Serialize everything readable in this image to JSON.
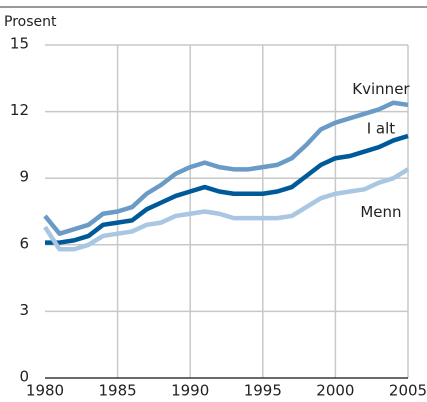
{
  "chart_data": {
    "type": "line",
    "y_label": "Prosent",
    "x": [
      1980,
      1981,
      1982,
      1983,
      1984,
      1985,
      1986,
      1987,
      1988,
      1989,
      1990,
      1991,
      1992,
      1993,
      1994,
      1995,
      1996,
      1997,
      1998,
      1999,
      2000,
      2001,
      2002,
      2003,
      2004,
      2005
    ],
    "series": [
      {
        "name": "Kvinner",
        "color": "#6a9ac6",
        "values": [
          7.3,
          6.5,
          6.7,
          6.9,
          7.4,
          7.5,
          7.7,
          8.3,
          8.7,
          9.2,
          9.5,
          9.7,
          9.5,
          9.4,
          9.4,
          9.5,
          9.6,
          9.9,
          10.5,
          11.2,
          11.5,
          11.7,
          11.9,
          12.1,
          12.4,
          12.3
        ]
      },
      {
        "name": "I alt",
        "color": "#005a9a",
        "values": [
          6.1,
          6.1,
          6.2,
          6.4,
          6.9,
          7.0,
          7.1,
          7.6,
          7.9,
          8.2,
          8.4,
          8.6,
          8.4,
          8.3,
          8.3,
          8.3,
          8.4,
          8.6,
          9.1,
          9.6,
          9.9,
          10.0,
          10.2,
          10.4,
          10.7,
          10.9
        ]
      },
      {
        "name": "Menn",
        "color": "#a9c6e2",
        "values": [
          6.8,
          5.8,
          5.8,
          6.0,
          6.4,
          6.5,
          6.6,
          6.9,
          7.0,
          7.3,
          7.4,
          7.5,
          7.4,
          7.2,
          7.2,
          7.2,
          7.2,
          7.3,
          7.7,
          8.1,
          8.3,
          8.4,
          8.5,
          8.8,
          9.0,
          9.4
        ]
      }
    ],
    "xlim": [
      1980,
      2005
    ],
    "xticks": [
      1980,
      1985,
      1990,
      1995,
      2000,
      2005
    ],
    "ylim": [
      0,
      15
    ],
    "yticks": [
      0,
      3,
      6,
      9,
      12,
      15
    ],
    "grid": true
  }
}
